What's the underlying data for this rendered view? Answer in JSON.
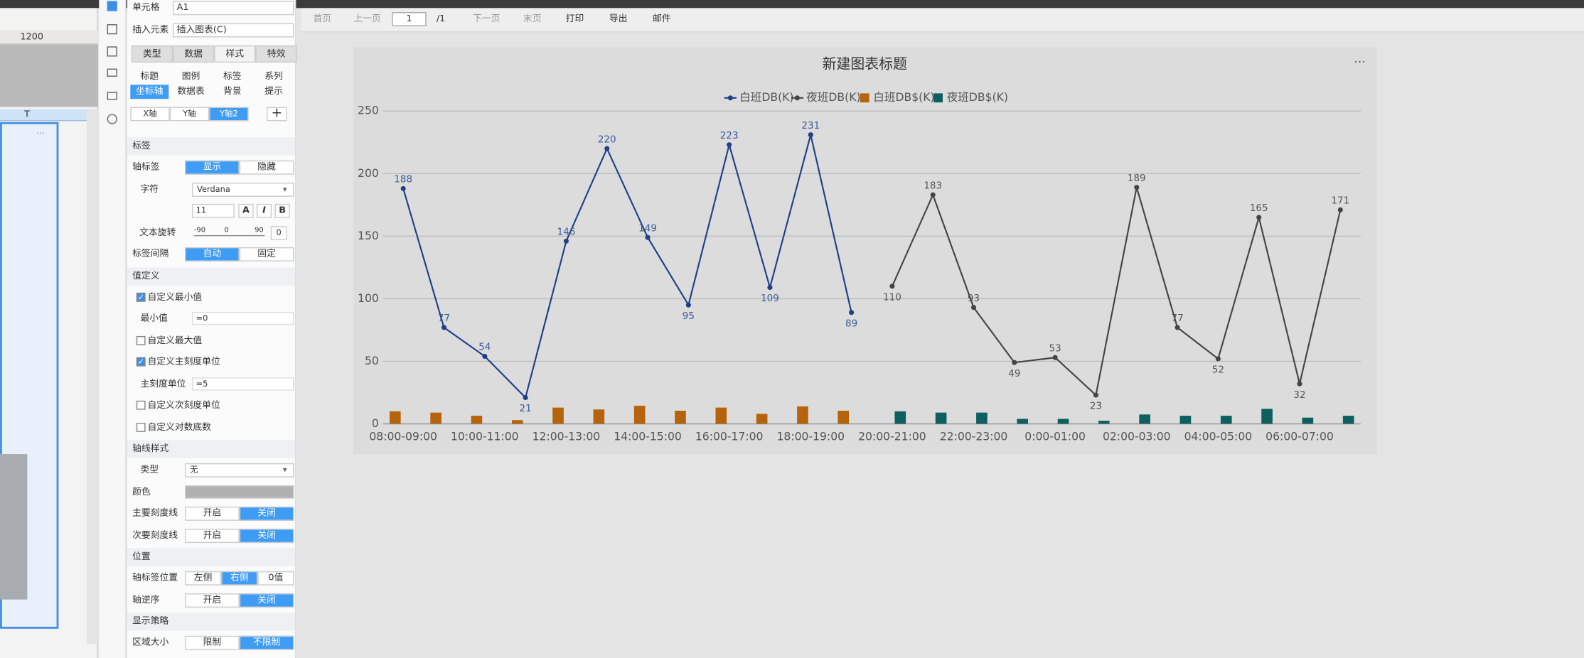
{
  "toolbar": {
    "first": "首页",
    "prev": "上一页",
    "page": "1",
    "total": "/1",
    "next": "下一页",
    "last": "末页",
    "print": "打印",
    "export": "导出",
    "mail": "邮件"
  },
  "sheet": {
    "ruler": "1200",
    "column": "T"
  },
  "panel": {
    "cell_label": "单元格",
    "cell_value": "A1",
    "insert_label": "插入元素",
    "insert_value": "插入图表(C)",
    "tabs": [
      "类型",
      "数据",
      "样式",
      "特效"
    ],
    "tab_selected": 2,
    "subtabs": [
      "标题",
      "图例",
      "标签",
      "系列",
      "坐标轴",
      "数据表",
      "背景",
      "提示"
    ],
    "subtab_selected": 4,
    "axis_tabs": [
      "X轴",
      "Y轴",
      "Y轴2"
    ],
    "axis_tab_selected": 2,
    "rows": [
      {
        "section": "标签"
      },
      {
        "label": "轴标签",
        "options": [
          "显示",
          "隐藏"
        ],
        "selected": 0
      },
      {
        "label": "字符",
        "select": "Verdana"
      },
      {
        "size": "11",
        "styles": [
          "A",
          "I",
          "B"
        ]
      },
      {
        "label": "文本旋转",
        "marks": [
          "-90",
          "0",
          "90"
        ],
        "value": "0"
      },
      {
        "label": "标签间隔",
        "options": [
          "自动",
          "固定"
        ],
        "selected": 0
      },
      {
        "section": "值定义"
      },
      {
        "check": "自定义最小值",
        "checked": true
      },
      {
        "label": "最小值",
        "value": "=0"
      },
      {
        "check": "自定义最大值",
        "checked": false
      },
      {
        "check": "自定义主刻度单位",
        "checked": true
      },
      {
        "label": "主刻度单位",
        "value": "=5"
      },
      {
        "check": "自定义次刻度单位",
        "checked": false
      },
      {
        "check": "自定义对数底数",
        "checked": false
      },
      {
        "section": "轴线样式"
      },
      {
        "label": "类型",
        "select": "无"
      },
      {
        "label": "颜色",
        "color": "#b0b0b0"
      },
      {
        "label": "主要刻度线",
        "options": [
          "开启",
          "关闭"
        ],
        "selected": 1
      },
      {
        "label": "次要刻度线",
        "options": [
          "开启",
          "关闭"
        ],
        "selected": 1
      },
      {
        "section": "位置"
      },
      {
        "label": "轴标签位置",
        "options": [
          "左侧",
          "右侧",
          "0值"
        ],
        "selected": 1
      },
      {
        "label": "轴逆序",
        "options": [
          "开启",
          "关闭"
        ],
        "selected": 1
      },
      {
        "section": "显示策略"
      },
      {
        "label": "区域大小",
        "options": [
          "限制",
          "不限制"
        ],
        "selected": 1
      }
    ]
  },
  "chart_data": {
    "type": "combo",
    "title": "新建图表标题",
    "categories": [
      "08:00-09:00",
      null,
      "10:00-11:00",
      null,
      "12:00-13:00",
      null,
      "14:00-15:00",
      null,
      "16:00-17:00",
      null,
      "18:00-19:00",
      null,
      "20:00-21:00",
      null,
      "22:00-23:00",
      null,
      "0:00-01:00",
      null,
      "02:00-03:00",
      null,
      "04:00-05:00",
      null,
      "06:00-07:00",
      null
    ],
    "series": [
      {
        "name": "白班DB(K)",
        "type": "line",
        "color": "#1f3f86",
        "values": [
          188,
          77,
          54,
          21,
          146,
          220,
          149,
          95,
          223,
          109,
          231,
          89,
          null,
          null,
          null,
          null,
          null,
          null,
          null,
          null,
          null,
          null,
          null,
          null
        ]
      },
      {
        "name": "夜班DB(K)",
        "type": "line",
        "color": "#444444",
        "values": [
          null,
          null,
          null,
          null,
          null,
          null,
          null,
          null,
          null,
          null,
          null,
          null,
          110,
          183,
          93,
          49,
          53,
          23,
          189,
          77,
          52,
          165,
          32,
          171
        ]
      },
      {
        "name": "白班DB$(K)",
        "type": "bar",
        "color": "#b5630c",
        "values": [
          10,
          9,
          6.5,
          3,
          13,
          11.5,
          14.5,
          10.5,
          13,
          8,
          14,
          10.5,
          null,
          null,
          null,
          null,
          null,
          null,
          null,
          null,
          null,
          null,
          null,
          null
        ]
      },
      {
        "name": "夜班DB$(K)",
        "type": "bar",
        "color": "#0d5f60",
        "values": [
          null,
          null,
          null,
          null,
          null,
          null,
          null,
          null,
          null,
          null,
          null,
          null,
          10,
          9,
          9,
          4,
          4,
          2.5,
          7.5,
          6.5,
          6.5,
          12,
          5,
          6.5
        ]
      }
    ],
    "ylim": [
      0,
      250
    ],
    "yticks": [
      0,
      50,
      100,
      150,
      200,
      250
    ],
    "grid": true,
    "legend": "top"
  }
}
